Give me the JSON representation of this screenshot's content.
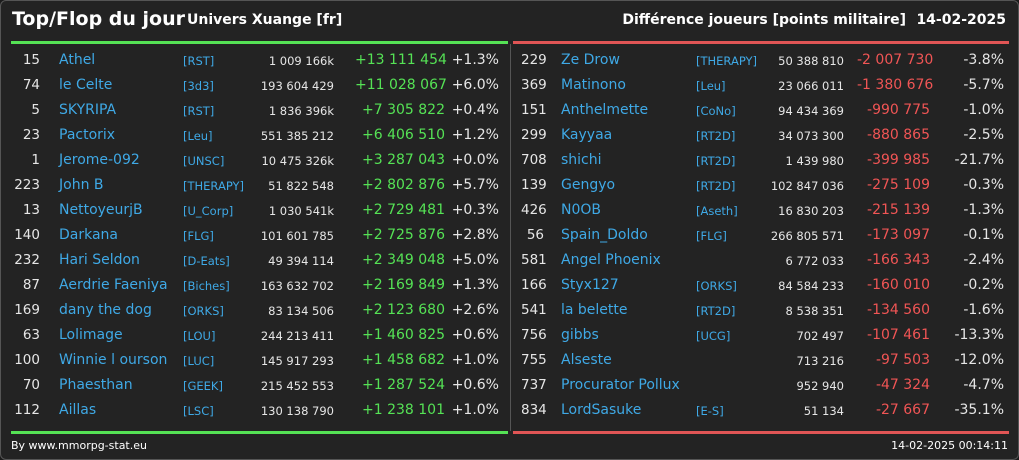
{
  "header": {
    "title": "Top/Flop du jour",
    "universe": "Univers Xuange [fr]",
    "subtitle": "Différence joueurs [points militaire]",
    "date": "14-02-2025"
  },
  "colors": {
    "up": "#55e255",
    "down": "#f05555",
    "name": "#3fa9e6"
  },
  "top": [
    {
      "rank": "15",
      "name": "Athel",
      "tag": "[RST]",
      "points": "1 009 166k",
      "diff": "+13 111 454",
      "pct": "+1.3%"
    },
    {
      "rank": "74",
      "name": "le Celte",
      "tag": "[3d3]",
      "points": "193 604 429",
      "diff": "+11 028 067",
      "pct": "+6.0%"
    },
    {
      "rank": "5",
      "name": "SKYRIPA",
      "tag": "[RST]",
      "points": "1 836 396k",
      "diff": "+7 305 822",
      "pct": "+0.4%"
    },
    {
      "rank": "23",
      "name": "Pactorix",
      "tag": "[Leu]",
      "points": "551 385 212",
      "diff": "+6 406 510",
      "pct": "+1.2%"
    },
    {
      "rank": "1",
      "name": "Jerome-092",
      "tag": "[UNSC]",
      "points": "10 475 326k",
      "diff": "+3 287 043",
      "pct": "+0.0%"
    },
    {
      "rank": "223",
      "name": "John B",
      "tag": "[THERAPY]",
      "points": "51 822 548",
      "diff": "+2 802 876",
      "pct": "+5.7%"
    },
    {
      "rank": "13",
      "name": "NettoyeurjB",
      "tag": "[U_Corp]",
      "points": "1 030 541k",
      "diff": "+2 729 481",
      "pct": "+0.3%"
    },
    {
      "rank": "140",
      "name": "Darkana",
      "tag": "[FLG]",
      "points": "101 601 785",
      "diff": "+2 725 876",
      "pct": "+2.8%"
    },
    {
      "rank": "232",
      "name": "Hari Seldon",
      "tag": "[D-Eats]",
      "points": "49 394 114",
      "diff": "+2 349 048",
      "pct": "+5.0%"
    },
    {
      "rank": "87",
      "name": "Aerdrie Faeniya",
      "tag": "[Biches]",
      "points": "163 632 702",
      "diff": "+2 169 849",
      "pct": "+1.3%"
    },
    {
      "rank": "169",
      "name": "dany the dog",
      "tag": "[ORKS]",
      "points": "83 134 506",
      "diff": "+2 123 680",
      "pct": "+2.6%"
    },
    {
      "rank": "63",
      "name": "Lolimage",
      "tag": "[LOU]",
      "points": "244 213 411",
      "diff": "+1 460 825",
      "pct": "+0.6%"
    },
    {
      "rank": "100",
      "name": "Winnie l ourson",
      "tag": "[LUC]",
      "points": "145 917 293",
      "diff": "+1 458 682",
      "pct": "+1.0%"
    },
    {
      "rank": "70",
      "name": "Phaesthan",
      "tag": "[GEEK]",
      "points": "215 452 553",
      "diff": "+1 287 524",
      "pct": "+0.6%"
    },
    {
      "rank": "112",
      "name": "Aillas",
      "tag": "[LSC]",
      "points": "130 138 790",
      "diff": "+1 238 101",
      "pct": "+1.0%"
    }
  ],
  "flop": [
    {
      "rank": "229",
      "name": "Ze Drow",
      "tag": "[THERAPY]",
      "points": "50 388 810",
      "diff": "-2 007 730",
      "pct": "-3.8%"
    },
    {
      "rank": "369",
      "name": "Matinono",
      "tag": "[Leu]",
      "points": "23 066 011",
      "diff": "-1 380 676",
      "pct": "-5.7%"
    },
    {
      "rank": "151",
      "name": "Anthelmette",
      "tag": "[CoNo]",
      "points": "94 434 369",
      "diff": "-990 775",
      "pct": "-1.0%"
    },
    {
      "rank": "299",
      "name": "Kayyaa",
      "tag": "[RT2D]",
      "points": "34 073 300",
      "diff": "-880 865",
      "pct": "-2.5%"
    },
    {
      "rank": "708",
      "name": "shichi",
      "tag": "[RT2D]",
      "points": "1 439 980",
      "diff": "-399 985",
      "pct": "-21.7%"
    },
    {
      "rank": "139",
      "name": "Gengyo",
      "tag": "[RT2D]",
      "points": "102 847 036",
      "diff": "-275 109",
      "pct": "-0.3%"
    },
    {
      "rank": "426",
      "name": "N0OB",
      "tag": "[Aseth]",
      "points": "16 830 203",
      "diff": "-215 139",
      "pct": "-1.3%"
    },
    {
      "rank": "56",
      "name": "Spain_Doldo",
      "tag": "[FLG]",
      "points": "266 805 571",
      "diff": "-173 097",
      "pct": "-0.1%"
    },
    {
      "rank": "581",
      "name": "Angel Phoenix",
      "tag": "",
      "points": "6 772 033",
      "diff": "-166 343",
      "pct": "-2.4%"
    },
    {
      "rank": "166",
      "name": "Styx127",
      "tag": "[ORKS]",
      "points": "84 584 233",
      "diff": "-160 010",
      "pct": "-0.2%"
    },
    {
      "rank": "541",
      "name": "la belette",
      "tag": "[RT2D]",
      "points": "8 538 351",
      "diff": "-134 560",
      "pct": "-1.6%"
    },
    {
      "rank": "756",
      "name": "gibbs",
      "tag": "[UCG]",
      "points": "702 497",
      "diff": "-107 461",
      "pct": "-13.3%"
    },
    {
      "rank": "755",
      "name": "Alseste",
      "tag": "",
      "points": "713 216",
      "diff": "-97 503",
      "pct": "-12.0%"
    },
    {
      "rank": "737",
      "name": "Procurator Pollux",
      "tag": "",
      "points": "952 940",
      "diff": "-47 324",
      "pct": "-4.7%"
    },
    {
      "rank": "834",
      "name": "LordSasuke",
      "tag": "[E-S]",
      "points": "51 134",
      "diff": "-27 667",
      "pct": "-35.1%"
    }
  ],
  "footer": {
    "source": "By www.mmorpg-stat.eu",
    "timestamp": "14-02-2025 00:14:11"
  }
}
